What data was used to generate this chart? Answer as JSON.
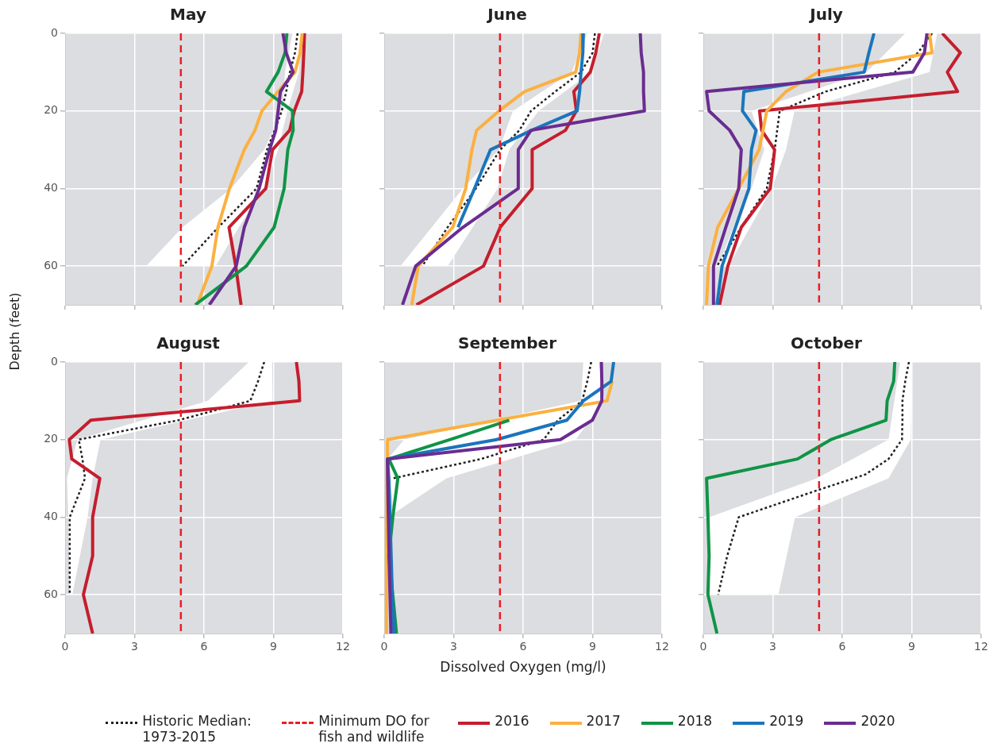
{
  "chart_data": [
    {
      "type": "line",
      "title": "May",
      "ylabel": "Depth (feet)",
      "xlim": [
        0,
        12
      ],
      "xticks": [
        0,
        3,
        6,
        9,
        12
      ],
      "ylim": [
        70,
        0
      ],
      "yticks": [
        0,
        20,
        40,
        60
      ],
      "grid": true,
      "marker": "none",
      "tick_labels": "y",
      "ref_lines": [
        {
          "axis": "x",
          "value": 5,
          "color": "#ed1c24",
          "line_style": "dashed"
        }
      ],
      "series": [
        {
          "type": "area",
          "color": "#ffffff",
          "x": [
            9.82,
            9.5,
            9.38,
            8.6,
            7.17,
            5.07,
            3.5,
            6.5,
            7.5,
            8.6,
            9.2,
            9.6,
            10.1,
            10.2
          ],
          "values": [
            0,
            10,
            20,
            30,
            40,
            50,
            60,
            60,
            50,
            40,
            30,
            20,
            10,
            0
          ]
        },
        {
          "type": "line",
          "color": "#231f20",
          "line_style": "dotted",
          "x": [
            10.04,
            9.93,
            9.71,
            9.55,
            9.36,
            9.05,
            8.72,
            8.27,
            6.62,
            5.07
          ],
          "values": [
            0,
            5,
            10,
            15,
            20,
            25,
            30,
            40,
            50,
            60
          ]
        },
        {
          "type": "line",
          "color": "#c41e2e",
          "x": [
            10.34,
            10.31,
            10.27,
            10.22,
            9.9,
            9.7,
            8.96,
            8.67,
            7.08,
            7.37,
            7.6
          ],
          "values": [
            0,
            5,
            10,
            15,
            20,
            25,
            30,
            40,
            50,
            60,
            70
          ]
        },
        {
          "type": "line",
          "color": "#fbb040",
          "x": [
            10.24,
            10.15,
            9.93,
            9.2,
            8.5,
            8.2,
            7.74,
            7.1,
            6.6,
            6.34,
            5.7
          ],
          "values": [
            0,
            5,
            10,
            15,
            20,
            25,
            30,
            40,
            50,
            60,
            70
          ]
        },
        {
          "type": "line",
          "color": "#0f9447",
          "x": [
            9.58,
            9.5,
            9.2,
            8.7,
            9.82,
            9.85,
            9.62,
            9.46,
            9.03,
            7.83,
            5.62
          ],
          "values": [
            0,
            5,
            10,
            15,
            20,
            25,
            30,
            40,
            50,
            60,
            70
          ]
        },
        {
          "type": "line",
          "color": "#6a2c91",
          "x": [
            9.41,
            9.55,
            9.85,
            9.3,
            9.2,
            9.1,
            8.83,
            8.38,
            7.74,
            7.39,
            6.23
          ],
          "values": [
            0,
            5,
            10,
            15,
            20,
            25,
            30,
            40,
            50,
            60,
            70
          ]
        }
      ]
    },
    {
      "type": "line",
      "title": "June",
      "xlim": [
        0,
        12
      ],
      "xticks": [
        0,
        3,
        6,
        9,
        12
      ],
      "ylim": [
        70,
        0
      ],
      "yticks": [
        0,
        20,
        40,
        60
      ],
      "grid": true,
      "marker": "none",
      "tick_labels": false,
      "ref_lines": [
        {
          "axis": "x",
          "value": 5,
          "color": "#ed1c24",
          "line_style": "dashed"
        }
      ],
      "series": [
        {
          "type": "area",
          "color": "#ffffff",
          "x": [
            8.77,
            8.1,
            5.56,
            4.96,
            3.4,
            0.7,
            2.74,
            4.9,
            5.4,
            6.67,
            8.94,
            9.5
          ],
          "values": [
            0,
            10,
            20,
            30,
            40,
            60,
            60,
            40,
            30,
            20,
            10,
            0
          ]
        },
        {
          "type": "line",
          "color": "#231f20",
          "line_style": "dotted",
          "x": [
            9.1,
            9.0,
            8.5,
            7.39,
            6.34,
            5.84,
            5.01,
            3.96,
            2.74,
            1.64
          ],
          "values": [
            0,
            5,
            10,
            15,
            20,
            25,
            30,
            40,
            50,
            60
          ]
        },
        {
          "type": "line",
          "color": "#c41e2e",
          "x": [
            9.29,
            9.14,
            8.9,
            8.19,
            8.3,
            7.83,
            6.39,
            6.39,
            5.01,
            4.29,
            1.39
          ],
          "values": [
            0,
            5,
            10,
            15,
            20,
            25,
            30,
            40,
            50,
            60,
            70
          ]
        },
        {
          "type": "line",
          "color": "#fbb040",
          "x": [
            8.5,
            8.44,
            8.27,
            6.06,
            4.96,
            3.99,
            3.79,
            3.52,
            2.96,
            1.47,
            1.19
          ],
          "values": [
            0,
            5,
            10,
            15,
            20,
            25,
            30,
            40,
            50,
            60,
            70
          ]
        },
        {
          "type": "line",
          "color": "#1a75bc",
          "x": [
            8.6,
            8.58,
            8.5,
            8.44,
            8.33,
            6.37,
            4.59,
            3.9,
            3.19
          ],
          "values": [
            0,
            5,
            10,
            15,
            20,
            25,
            30,
            40,
            50
          ]
        },
        {
          "type": "line",
          "color": "#6a2c91",
          "x": [
            11.06,
            11.1,
            11.2,
            11.2,
            11.24,
            6.34,
            5.79,
            5.79,
            3.4,
            1.36,
            0.79
          ],
          "values": [
            0,
            5,
            10,
            15,
            20,
            25,
            30,
            40,
            50,
            60,
            70
          ]
        }
      ]
    },
    {
      "type": "line",
      "title": "July",
      "xlim": [
        0,
        12
      ],
      "xticks": [
        0,
        3,
        6,
        9,
        12
      ],
      "ylim": [
        70,
        0
      ],
      "yticks": [
        0,
        20,
        40,
        60
      ],
      "grid": true,
      "marker": "none",
      "tick_labels": false,
      "ref_lines": [
        {
          "axis": "x",
          "value": 5,
          "color": "#ed1c24",
          "line_style": "dashed"
        }
      ],
      "series": [
        {
          "type": "area",
          "color": "#ffffff",
          "x": [
            8.72,
            7.06,
            2.08,
            2.63,
            2.08,
            1.3,
            0.64,
            1.08,
            2.02,
            2.96,
            3.57,
            3.94,
            9.77,
            10.1
          ],
          "values": [
            0,
            10,
            20,
            30,
            40,
            50,
            60,
            60,
            50,
            40,
            30,
            20,
            10,
            0
          ]
        },
        {
          "type": "line",
          "color": "#231f20",
          "line_style": "dotted",
          "x": [
            9.88,
            9.27,
            8.27,
            5.29,
            3.3,
            3.19,
            3.08,
            2.74,
            1.64,
            0.59
          ],
          "values": [
            0,
            5,
            10,
            15,
            20,
            25,
            30,
            40,
            50,
            60
          ]
        },
        {
          "type": "line",
          "color": "#c41e2e",
          "x": [
            10.32,
            11.1,
            10.54,
            10.98,
            2.43,
            2.52,
            3.08,
            2.89,
            1.64,
            1.06,
            0.7
          ],
          "values": [
            0,
            5,
            10,
            15,
            20,
            25,
            30,
            40,
            50,
            60,
            70
          ]
        },
        {
          "type": "line",
          "color": "#fbb040",
          "x": [
            9.77,
            9.88,
            4.96,
            3.57,
            2.74,
            2.58,
            2.41,
            1.53,
            0.62,
            0.22,
            0.14
          ],
          "values": [
            0,
            5,
            10,
            15,
            20,
            25,
            30,
            40,
            50,
            60,
            70
          ]
        },
        {
          "type": "line",
          "color": "#1a75bc",
          "x": [
            7.37,
            7.15,
            6.95,
            1.75,
            1.69,
            2.28,
            2.08,
            1.97,
            1.39,
            0.81,
            0.59
          ],
          "values": [
            0,
            5,
            10,
            15,
            20,
            25,
            30,
            40,
            50,
            60,
            70
          ]
        },
        {
          "type": "line",
          "color": "#6a2c91",
          "x": [
            9.66,
            9.55,
            9.05,
            0.14,
            0.25,
            1.14,
            1.64,
            1.53,
            0.97,
            0.44,
            0.44
          ],
          "values": [
            0,
            5,
            10,
            15,
            20,
            25,
            30,
            40,
            50,
            60,
            70
          ]
        }
      ]
    },
    {
      "type": "line",
      "title": "August",
      "xlim": [
        0,
        12
      ],
      "xticks": [
        0,
        3,
        6,
        9,
        12
      ],
      "ylim": [
        70,
        0
      ],
      "yticks": [
        0,
        20,
        40,
        60
      ],
      "grid": true,
      "marker": "none",
      "ref_lines": [
        {
          "axis": "x",
          "value": 5,
          "color": "#ed1c24",
          "line_style": "dashed"
        }
      ],
      "series": [
        {
          "type": "area",
          "color": "#ffffff",
          "x": [
            7.94,
            6.17,
            0.53,
            0.08,
            0.14,
            0.2,
            0.31,
            0.97,
            1.19,
            1.53,
            8.96,
            8.94
          ],
          "values": [
            0,
            10,
            20,
            30,
            40,
            60,
            60,
            40,
            30,
            20,
            10,
            0
          ]
        },
        {
          "type": "line",
          "color": "#231f20",
          "line_style": "dotted",
          "x": [
            8.6,
            8.33,
            8.0,
            4.9,
            0.59,
            0.75,
            0.86,
            0.2,
            0.2,
            0.2
          ],
          "values": [
            0,
            5,
            10,
            15,
            20,
            25,
            30,
            40,
            50,
            60
          ]
        },
        {
          "type": "line",
          "color": "#c41e2e",
          "x": [
            9.99,
            10.1,
            10.13,
            1.11,
            0.18,
            0.29,
            1.5,
            1.19,
            1.19,
            0.79,
            1.19
          ],
          "values": [
            0,
            5,
            10,
            15,
            20,
            25,
            30,
            40,
            50,
            60,
            70
          ]
        }
      ]
    },
    {
      "type": "line",
      "title": "September",
      "xlabel": "Dissolved Oxygen (mg/l)",
      "xlim": [
        0,
        12
      ],
      "xticks": [
        0,
        3,
        6,
        9,
        12
      ],
      "ylim": [
        70,
        0
      ],
      "yticks": [
        0,
        20,
        40,
        60
      ],
      "grid": true,
      "marker": "none",
      "tick_labels": "x",
      "legend": "bottom",
      "ref_lines": [
        {
          "axis": "x",
          "value": 5,
          "label": "Minimum DO for fish and wildlife",
          "color": "#ed1c24",
          "line_style": "dashed"
        }
      ],
      "series": [
        {
          "type": "area",
          "color": "#ffffff",
          "x": [
            8.6,
            8.5,
            0.86,
            0.15,
            0.42,
            2.69,
            8.27,
            9.5,
            9.27
          ],
          "values": [
            0,
            10,
            20,
            25,
            39,
            30,
            20,
            10,
            0
          ]
        },
        {
          "type": "line",
          "name": "Historic Median: 1973-2015",
          "color": "#231f20",
          "line_style": "dotted",
          "x": [
            8.94,
            8.77,
            8.55,
            7.5,
            6.89,
            4.18,
            0.37
          ],
          "values": [
            0,
            5,
            10,
            15,
            20,
            25,
            30
          ]
        },
        {
          "type": "line",
          "name": "2016",
          "color": "#c41e2e",
          "x": [
            null,
            null,
            null,
            null
          ],
          "values": [
            null,
            null,
            null,
            null
          ]
        },
        {
          "type": "line",
          "name": "2017",
          "color": "#fbb040",
          "x": [
            9.85,
            9.62,
            0.14,
            0.14,
            0.12,
            0.1,
            0.1,
            0.1,
            0.09
          ],
          "values": [
            5,
            10,
            20,
            25,
            30,
            40,
            50,
            60,
            70
          ]
        },
        {
          "type": "line",
          "name": "2018",
          "color": "#0f9447",
          "x": [
            5.4,
            2.85,
            0.2,
            0.59,
            0.37,
            0.2,
            0.37,
            0.53
          ],
          "values": [
            15,
            20,
            25,
            30,
            40,
            50,
            60,
            70
          ]
        },
        {
          "type": "line",
          "name": "2019",
          "color": "#1a75bc",
          "x": [
            9.91,
            9.8,
            8.6,
            7.89,
            4.85,
            0.14,
            0.2,
            0.25,
            0.3,
            0.35,
            0.42
          ],
          "values": [
            0,
            5,
            10,
            15,
            20,
            25,
            30,
            40,
            50,
            60,
            70
          ]
        },
        {
          "type": "line",
          "name": "2020",
          "color": "#6a2c91",
          "x": [
            9.38,
            9.4,
            9.4,
            8.99,
            7.61,
            0.14,
            0.15,
            0.18,
            0.21,
            0.25,
            0.29
          ],
          "values": [
            0,
            5,
            10,
            15,
            20,
            25,
            30,
            40,
            50,
            60,
            70
          ]
        }
      ]
    },
    {
      "type": "line",
      "title": "October",
      "xlim": [
        0,
        12
      ],
      "xticks": [
        0,
        3,
        6,
        9,
        12
      ],
      "ylim": [
        70,
        0
      ],
      "yticks": [
        0,
        20,
        40,
        60
      ],
      "grid": true,
      "marker": "none",
      "tick_labels": "x",
      "ref_lines": [
        {
          "axis": "x",
          "value": 5,
          "color": "#ed1c24",
          "line_style": "dashed"
        }
      ],
      "series": [
        {
          "type": "area",
          "color": "#ffffff",
          "x": [
            8.5,
            8.0,
            4.9,
            0.25,
            0.25,
            3.24,
            3.96,
            8.0,
            8.96,
            9.0
          ],
          "values": [
            0,
            20,
            30,
            40,
            60,
            60,
            40,
            30,
            20,
            0
          ]
        },
        {
          "type": "line",
          "color": "#231f20",
          "line_style": "dotted",
          "x": [
            8.88,
            8.72,
            8.6,
            8.6,
            8.58,
            8.0,
            7.0,
            4.96,
            1.53,
            1.03,
            0.64
          ],
          "values": [
            0,
            5,
            10,
            15,
            20,
            25,
            29,
            33,
            40,
            50,
            60
          ]
        },
        {
          "type": "line",
          "color": "#0f9447",
          "x": [
            8.27,
            8.22,
            7.94,
            7.89,
            5.51,
            4.07,
            0.14,
            0.2,
            0.25,
            0.2,
            0.59
          ],
          "values": [
            0,
            5,
            10,
            15,
            20,
            25,
            30,
            40,
            50,
            60,
            70
          ]
        }
      ]
    }
  ]
}
